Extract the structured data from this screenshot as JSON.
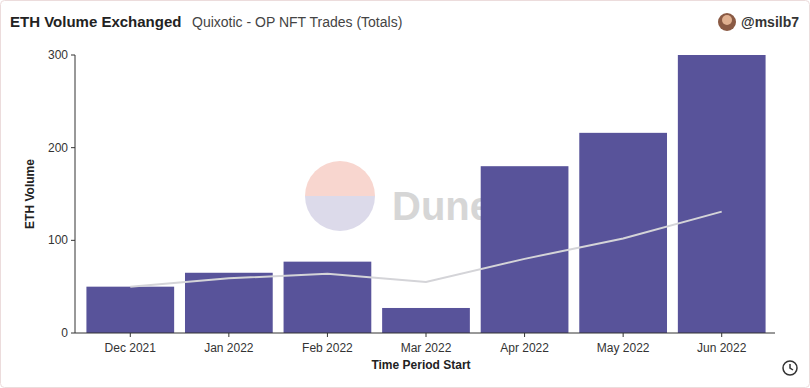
{
  "chart_data": {
    "type": "bar",
    "title": "ETH Volume Exchanged",
    "subtitle": "Quixotic - OP NFT Trades (Totals)",
    "annotations": [
      "@msilb7",
      "Dune"
    ],
    "x_label": "Time Period Start",
    "y_label": "ETH Volume",
    "categories": [
      "Dec 2021",
      "Jan 2022",
      "Feb 2022",
      "Mar 2022",
      "Apr 2022",
      "May 2022",
      "Jun 2022"
    ],
    "series": [
      {
        "type": "bar",
        "color": "#58539a",
        "values": [
          50,
          65,
          77,
          27,
          180,
          216,
          300
        ]
      },
      {
        "type": "line",
        "color": "#d4d4d8",
        "values": [
          50,
          59,
          64,
          55,
          80,
          102,
          131
        ]
      }
    ],
    "ylim": [
      0,
      300
    ],
    "yticks": [
      0,
      100,
      200,
      300
    ],
    "grid": false
  }
}
